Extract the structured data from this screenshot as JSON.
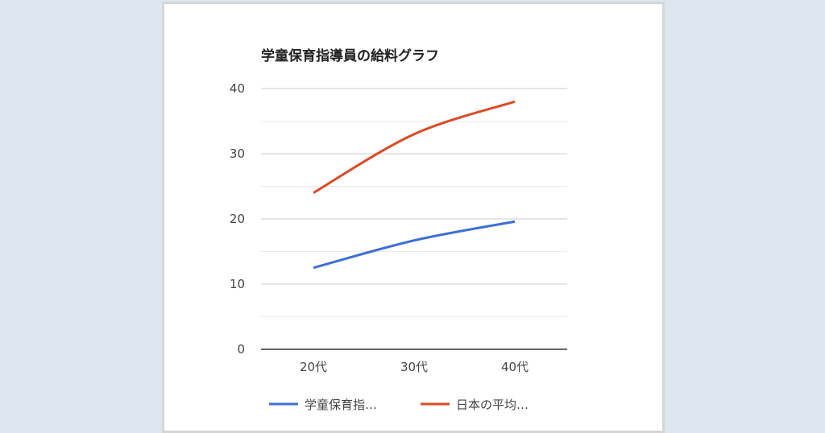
{
  "chart_data": {
    "type": "line",
    "title": "学童保育指導員の給料グラフ",
    "categories": [
      "20代",
      "30代",
      "40代"
    ],
    "ylim": [
      0,
      40
    ],
    "yticks": [
      0,
      10,
      20,
      30,
      40
    ],
    "grid": true,
    "legend_position": "bottom",
    "series": [
      {
        "name": "学童保育指…",
        "values": [
          12.5,
          16.7,
          19.6
        ],
        "color": "#3e6fd6"
      },
      {
        "name": "日本の平均…",
        "values": [
          24,
          33,
          38
        ],
        "color": "#dc4a26"
      }
    ]
  }
}
